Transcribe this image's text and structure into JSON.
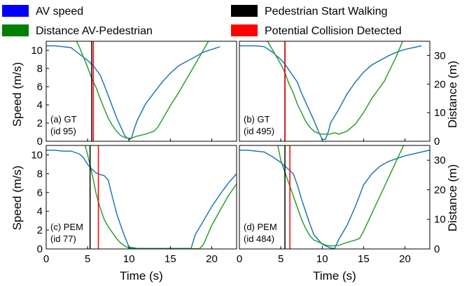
{
  "chart_data": {
    "type": "line",
    "legend": {
      "placement": "top",
      "entries": [
        {
          "label": "AV speed",
          "color": "#0000ff"
        },
        {
          "label": "Distance AV-Pedestrian",
          "color": "#008000"
        },
        {
          "label": "Pedestrian Start Walking",
          "color": "#000000"
        },
        {
          "label": "Potential Collision Detected",
          "color": "#ff0000"
        }
      ]
    },
    "colors": {
      "speed_line": "#1f77b4",
      "distance_line": "#2ca02c",
      "start_line": "#000000",
      "collision_line": "#ff0000"
    },
    "xlabel": "Time (s)",
    "ylabel_left": "Speed (m/s)",
    "ylabel_right": "Distance (m)",
    "xlim": [
      0,
      23
    ],
    "speed_ylim": [
      0,
      11
    ],
    "distance_ylim": [
      0,
      35
    ],
    "xticks": [
      0,
      5,
      10,
      15,
      20
    ],
    "speed_yticks": [
      0,
      2,
      4,
      6,
      8,
      10
    ],
    "distance_yticks": [
      0,
      10,
      20,
      30
    ],
    "panels": [
      {
        "label_line1": "(a) GT",
        "label_line2": "(id 95)",
        "pedestrian_start": 5.5,
        "collision_detected": 5.7,
        "speed": [
          [
            0,
            10.5
          ],
          [
            1,
            10.5
          ],
          [
            2,
            10.4
          ],
          [
            3,
            10.3
          ],
          [
            4,
            9.6
          ],
          [
            5,
            8.9
          ],
          [
            5.7,
            8.3
          ],
          [
            6.5,
            7.3
          ],
          [
            7,
            6.2
          ],
          [
            7.5,
            5.0
          ],
          [
            8,
            3.8
          ],
          [
            8.5,
            2.6
          ],
          [
            9,
            1.6
          ],
          [
            9.5,
            0.6
          ],
          [
            10,
            0.2
          ],
          [
            10.3,
            0.3
          ],
          [
            10.6,
            1.3
          ],
          [
            11,
            2.3
          ],
          [
            11.5,
            3.2
          ],
          [
            12,
            4.1
          ],
          [
            13,
            5.3
          ],
          [
            14,
            6.5
          ],
          [
            15,
            7.5
          ],
          [
            16,
            8.3
          ],
          [
            17,
            8.8
          ],
          [
            18,
            9.3
          ],
          [
            19,
            9.8
          ],
          [
            20,
            10.1
          ],
          [
            21,
            10.4
          ]
        ],
        "distance": [
          [
            3,
            39
          ],
          [
            4,
            33
          ],
          [
            5,
            26
          ],
          [
            5.5,
            22
          ],
          [
            6,
            19
          ],
          [
            6.5,
            15
          ],
          [
            7,
            11.5
          ],
          [
            7.5,
            8
          ],
          [
            8,
            5.5
          ],
          [
            8.5,
            3.5
          ],
          [
            9,
            2
          ],
          [
            9.5,
            1.3
          ],
          [
            10,
            1
          ],
          [
            10.5,
            1.3
          ],
          [
            11,
            1.8
          ],
          [
            12,
            2.5
          ],
          [
            13,
            3.5
          ],
          [
            13.5,
            5
          ],
          [
            14,
            7.5
          ],
          [
            15,
            12.5
          ],
          [
            16,
            17
          ],
          [
            16.5,
            19.5
          ],
          [
            17,
            22
          ],
          [
            18,
            27
          ],
          [
            19,
            32
          ],
          [
            20,
            37
          ]
        ]
      },
      {
        "label_line1": "(b) GT",
        "label_line2": "(id 495)",
        "pedestrian_start": 5.5,
        "collision_detected": 5.5,
        "speed": [
          [
            0,
            10.5
          ],
          [
            1,
            10.5
          ],
          [
            2,
            10.5
          ],
          [
            3,
            10.4
          ],
          [
            4,
            9.8
          ],
          [
            5,
            9.0
          ],
          [
            5.5,
            8.5
          ],
          [
            6,
            7.8
          ],
          [
            7,
            6.5
          ],
          [
            7.5,
            5.3
          ],
          [
            8,
            4.3
          ],
          [
            8.5,
            3.3
          ],
          [
            9,
            2.3
          ],
          [
            9.5,
            1.2
          ],
          [
            10,
            0.2
          ],
          [
            10.4,
            0.2
          ],
          [
            10.8,
            1.2
          ],
          [
            11,
            2.0
          ],
          [
            12,
            3.5
          ],
          [
            13,
            5.2
          ],
          [
            14,
            6.5
          ],
          [
            15,
            7.6
          ],
          [
            16,
            8.4
          ],
          [
            17,
            8.9
          ],
          [
            18,
            9.4
          ],
          [
            19,
            9.8
          ],
          [
            20,
            10.1
          ],
          [
            21,
            10.3
          ],
          [
            22,
            10.5
          ]
        ],
        "distance": [
          [
            3,
            37
          ],
          [
            4,
            32
          ],
          [
            5,
            27
          ],
          [
            5.5,
            24
          ],
          [
            6,
            20
          ],
          [
            6.5,
            17
          ],
          [
            7,
            13
          ],
          [
            7.5,
            10
          ],
          [
            8,
            7
          ],
          [
            8.5,
            5
          ],
          [
            9,
            3.5
          ],
          [
            9.5,
            2.8
          ],
          [
            10,
            2.5
          ],
          [
            11,
            2.5
          ],
          [
            11.5,
            3
          ],
          [
            12,
            2.5
          ],
          [
            13,
            3.5
          ],
          [
            14,
            6
          ],
          [
            15,
            10
          ],
          [
            16,
            15
          ],
          [
            17,
            19
          ],
          [
            17.5,
            21
          ],
          [
            18,
            24
          ],
          [
            19,
            30
          ],
          [
            20,
            37
          ]
        ]
      },
      {
        "label_line1": "(c) PEM",
        "label_line2": "(id 77)",
        "pedestrian_start": 5.3,
        "collision_detected": 6.3,
        "speed": [
          [
            0,
            10.5
          ],
          [
            1,
            10.5
          ],
          [
            2,
            10.4
          ],
          [
            3,
            10.4
          ],
          [
            4,
            10.1
          ],
          [
            4.5,
            9.7
          ],
          [
            5,
            9.0
          ],
          [
            5.5,
            8.5
          ],
          [
            6,
            8.1
          ],
          [
            6.5,
            7.9
          ],
          [
            7,
            7.8
          ],
          [
            7.5,
            7.3
          ],
          [
            8,
            5.5
          ],
          [
            8.5,
            3.8
          ],
          [
            9,
            2.5
          ],
          [
            9.5,
            1.3
          ],
          [
            10,
            0.2
          ],
          [
            11,
            0.05
          ],
          [
            13,
            0.05
          ],
          [
            15,
            0.05
          ],
          [
            17.5,
            0.05
          ],
          [
            18,
            1.5
          ],
          [
            19,
            3.0
          ],
          [
            20,
            4.5
          ],
          [
            21,
            5.8
          ],
          [
            22,
            7.0
          ],
          [
            23,
            8.0
          ]
        ],
        "distance": [
          [
            4.5,
            37
          ],
          [
            5,
            32
          ],
          [
            5.5,
            26
          ],
          [
            6,
            19
          ],
          [
            6.5,
            14
          ],
          [
            7,
            10
          ],
          [
            7.5,
            7.5
          ],
          [
            8,
            5.5
          ],
          [
            8.5,
            3.5
          ],
          [
            9,
            2
          ],
          [
            9.5,
            1
          ],
          [
            10,
            0.3
          ],
          [
            11,
            0.05
          ],
          [
            13,
            0.05
          ],
          [
            15,
            0.05
          ],
          [
            18.5,
            0.05
          ],
          [
            19,
            1.5
          ],
          [
            20,
            8
          ],
          [
            21,
            13
          ],
          [
            22,
            18
          ],
          [
            23,
            22
          ]
        ]
      },
      {
        "label_line1": "(d) PEM",
        "label_line2": "(id 484)",
        "pedestrian_start": 5.5,
        "collision_detected": 6.1,
        "speed": [
          [
            0,
            10.5
          ],
          [
            1,
            10.5
          ],
          [
            2,
            10.4
          ],
          [
            3,
            10.3
          ],
          [
            4,
            9.8
          ],
          [
            5,
            9.2
          ],
          [
            5.5,
            8.8
          ],
          [
            6,
            8.4
          ],
          [
            6.5,
            8.0
          ],
          [
            7,
            6.8
          ],
          [
            7.5,
            5.3
          ],
          [
            8,
            4.0
          ],
          [
            8.5,
            2.7
          ],
          [
            9,
            1.5
          ],
          [
            10,
            0.5
          ],
          [
            11,
            0.1
          ],
          [
            11.5,
            0.05
          ],
          [
            12,
            1.0
          ],
          [
            13,
            2.5
          ],
          [
            14,
            4.5
          ],
          [
            15,
            6.8
          ],
          [
            16,
            8.0
          ],
          [
            17,
            8.8
          ],
          [
            18,
            9.3
          ],
          [
            19,
            9.6
          ],
          [
            20,
            9.9
          ],
          [
            21,
            10.1
          ],
          [
            22,
            10.3
          ],
          [
            23,
            10.5
          ]
        ],
        "distance": [
          [
            4.5,
            37
          ],
          [
            5,
            30
          ],
          [
            5.5,
            26
          ],
          [
            6,
            22
          ],
          [
            6.5,
            18
          ],
          [
            7,
            14
          ],
          [
            7.5,
            10
          ],
          [
            8,
            7
          ],
          [
            8.5,
            4.5
          ],
          [
            9,
            3
          ],
          [
            10,
            1.8
          ],
          [
            10.5,
            1.2
          ],
          [
            11,
            1
          ],
          [
            12,
            1.2
          ],
          [
            13,
            2.2
          ],
          [
            14,
            3
          ],
          [
            14.5,
            3.5
          ],
          [
            15,
            6
          ],
          [
            16,
            12
          ],
          [
            17,
            18
          ],
          [
            17.5,
            21
          ],
          [
            18,
            24
          ],
          [
            19,
            30
          ],
          [
            20,
            36
          ]
        ]
      }
    ]
  }
}
